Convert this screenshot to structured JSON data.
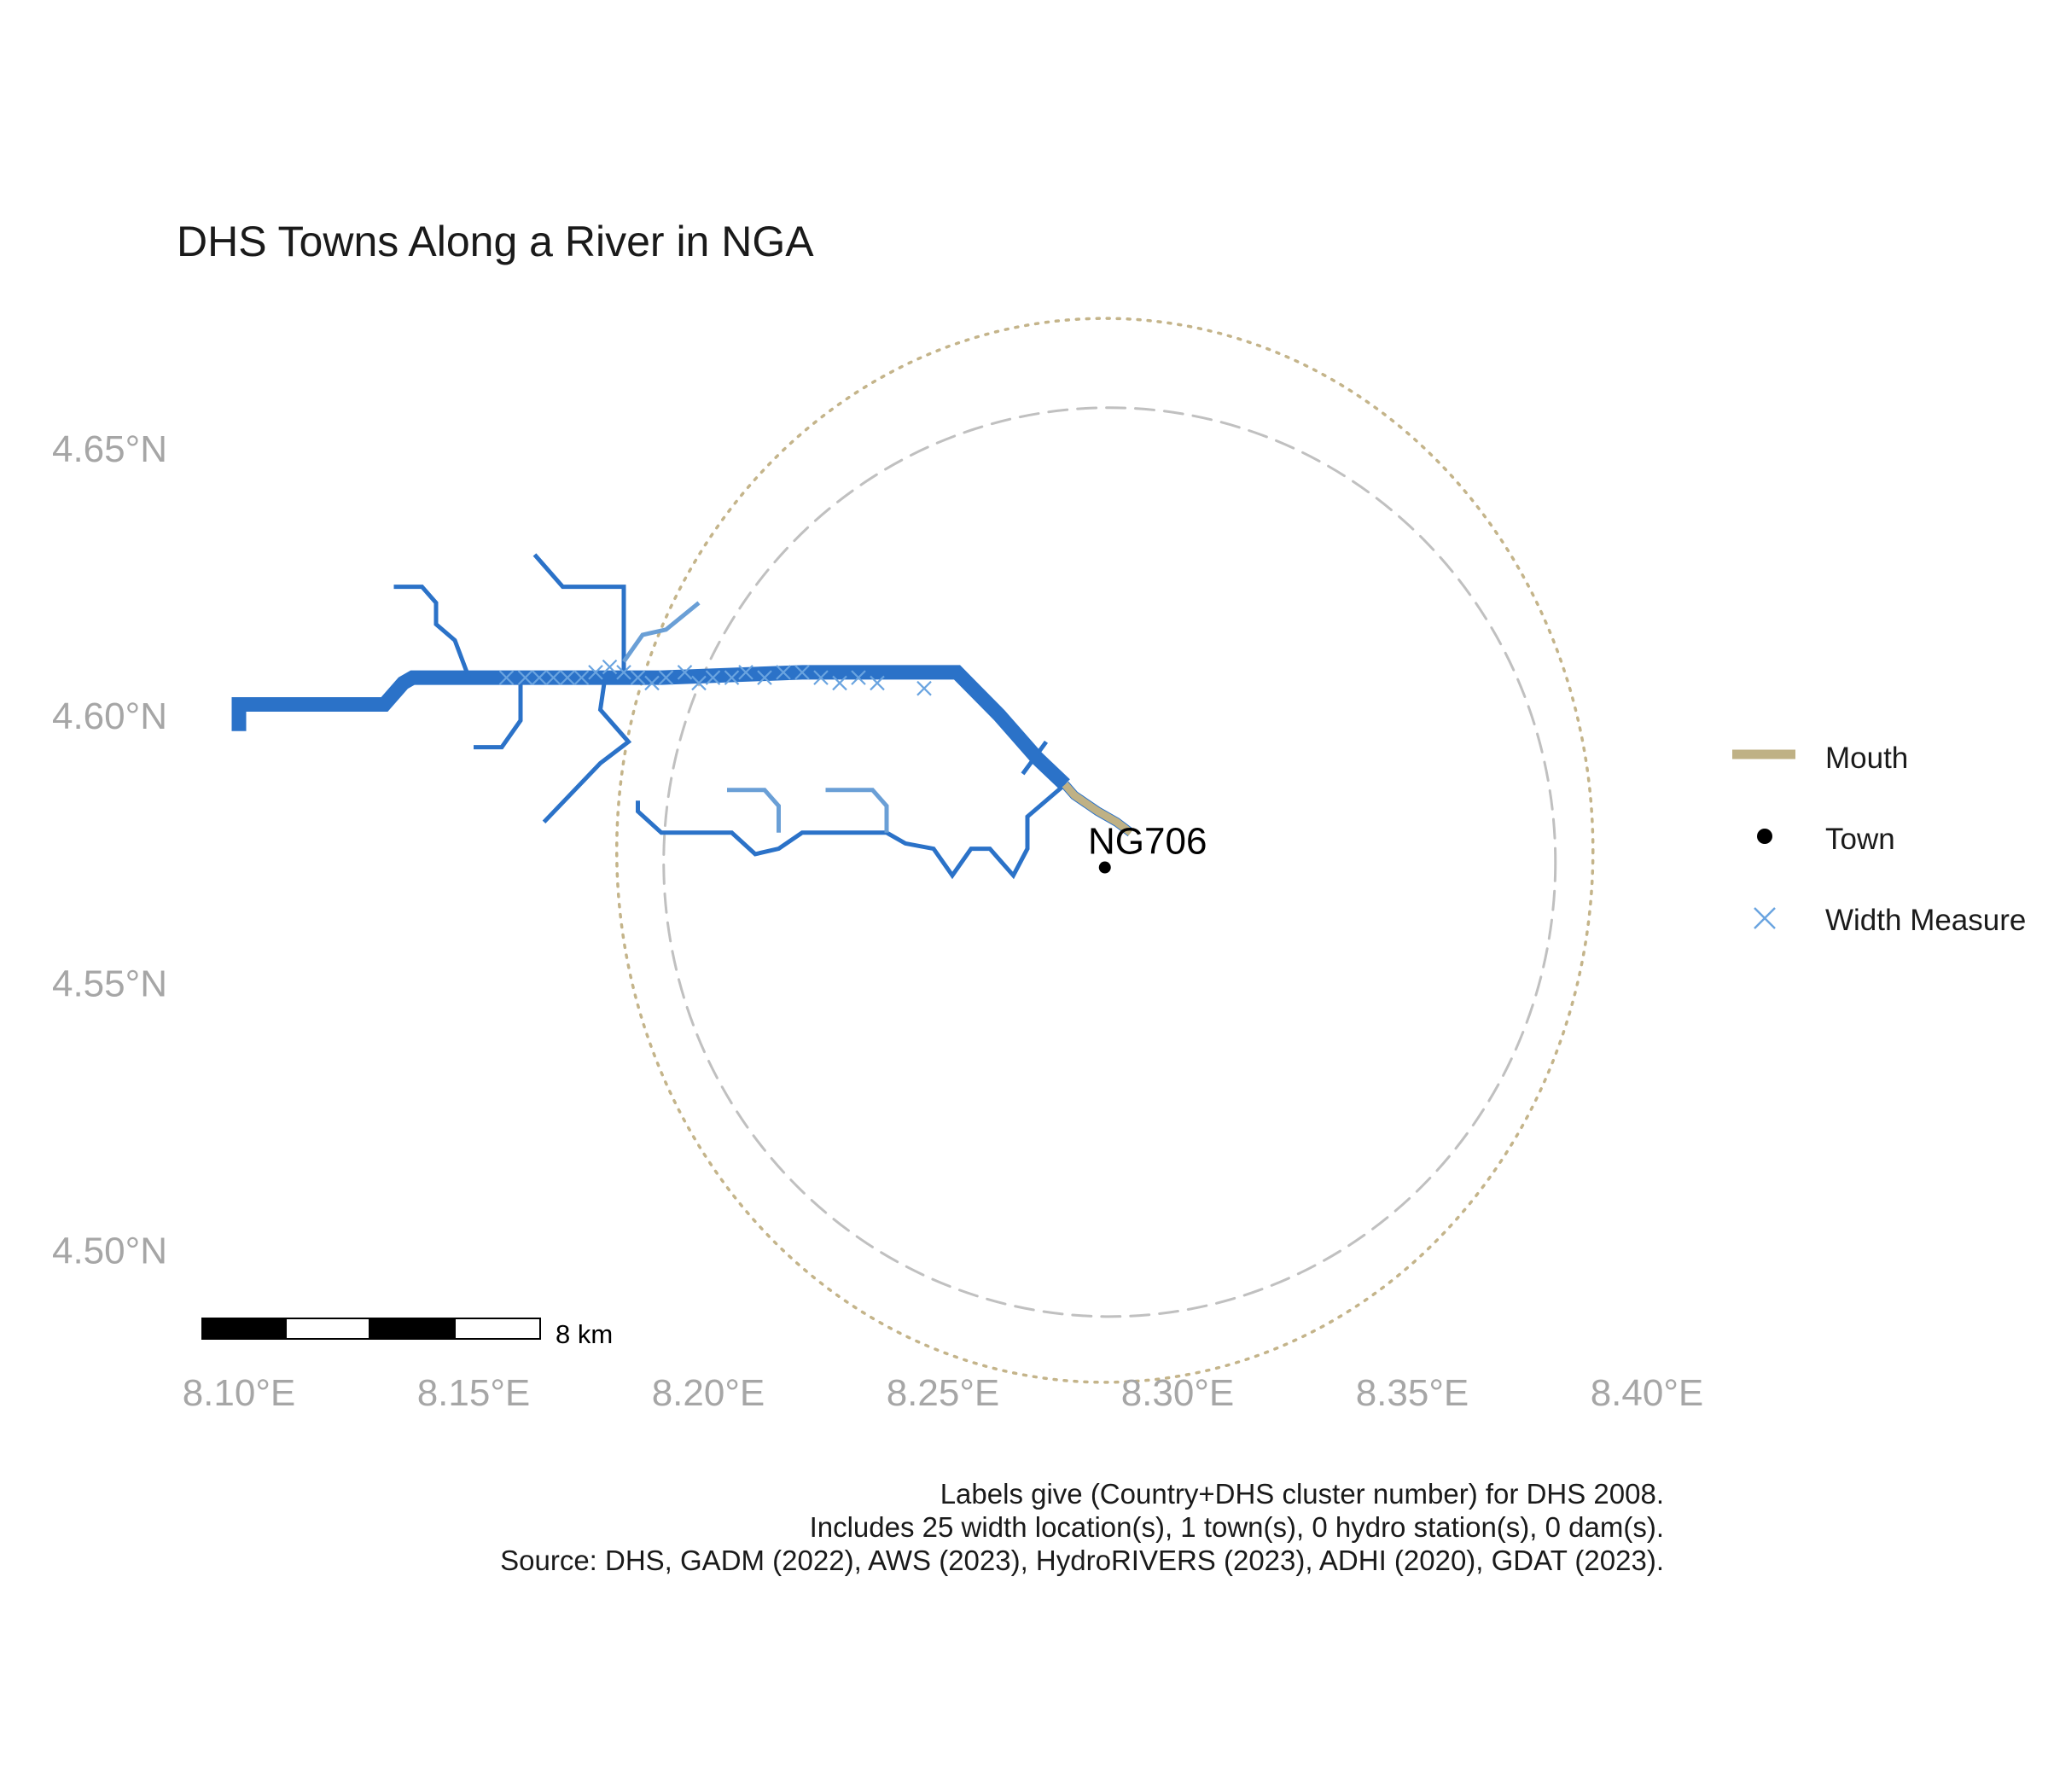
{
  "title": "DHS Towns Along a River in NGA",
  "chart_data": {
    "type": "map",
    "x_axis": {
      "ticks": [
        8.1,
        8.15,
        8.2,
        8.25,
        8.3,
        8.35,
        8.4
      ],
      "tick_labels": [
        "8.10°E",
        "8.15°E",
        "8.20°E",
        "8.25°E",
        "8.30°E",
        "8.35°E",
        "8.40°E"
      ],
      "range": [
        8.097,
        8.409
      ]
    },
    "y_axis": {
      "ticks": [
        4.5,
        4.55,
        4.6,
        4.65
      ],
      "tick_labels": [
        "4.50°N",
        "4.55°N",
        "4.60°N",
        "4.65°N"
      ],
      "range": [
        4.485,
        4.673
      ]
    },
    "grid": false,
    "colors": {
      "river": "#2b72c8",
      "tributary": "#6a9fd6",
      "mouth": "#bfb185",
      "town": "#000000",
      "width_measure": "#6aa4e0",
      "dashed_circle": "#c0c0c0",
      "dotted_circle": "#c4b48a"
    },
    "towns": [
      {
        "label": "NG706",
        "lon": 8.2845,
        "lat": 4.5715
      }
    ],
    "rivers": [
      {
        "role": "main",
        "weight": 2,
        "coords": [
          [
            8.1,
            4.597
          ],
          [
            8.1,
            4.602
          ],
          [
            8.115,
            4.602
          ],
          [
            8.131,
            4.602
          ],
          [
            8.135,
            4.606
          ],
          [
            8.137,
            4.607
          ],
          [
            8.155,
            4.607
          ],
          [
            8.175,
            4.607
          ],
          [
            8.19,
            4.607
          ],
          [
            8.22,
            4.608
          ],
          [
            8.253,
            4.608
          ],
          [
            8.262,
            4.6
          ],
          [
            8.27,
            4.592
          ],
          [
            8.276,
            4.587
          ]
        ]
      },
      {
        "role": "main",
        "weight": 1,
        "coords": [
          [
            8.276,
            4.587
          ],
          [
            8.278,
            4.585
          ],
          [
            8.283,
            4.582
          ],
          [
            8.287,
            4.58
          ],
          [
            8.29,
            4.578
          ]
        ]
      },
      {
        "role": "trib",
        "weight": 0,
        "coords": [
          [
            8.133,
            4.624
          ],
          [
            8.139,
            4.624
          ],
          [
            8.142,
            4.621
          ],
          [
            8.142,
            4.617
          ],
          [
            8.146,
            4.614
          ],
          [
            8.149,
            4.607
          ]
        ]
      },
      {
        "role": "trib",
        "weight": 0,
        "coords": [
          [
            8.16,
            4.607
          ],
          [
            8.16,
            4.599
          ],
          [
            8.156,
            4.594
          ],
          [
            8.15,
            4.594
          ]
        ]
      },
      {
        "role": "trib",
        "weight": 0,
        "coords": [
          [
            8.163,
            4.63
          ],
          [
            8.169,
            4.624
          ],
          [
            8.178,
            4.624
          ],
          [
            8.182,
            4.624
          ],
          [
            8.182,
            4.607
          ]
        ]
      },
      {
        "role": "trib",
        "weight": 0,
        "coords": [
          [
            8.178,
            4.607
          ],
          [
            8.177,
            4.601
          ],
          [
            8.183,
            4.595
          ],
          [
            8.177,
            4.591
          ],
          [
            8.165,
            4.58
          ]
        ]
      },
      {
        "role": "trib",
        "weight": 0,
        "coords": [
          [
            8.267,
            4.589
          ],
          [
            8.272,
            4.595
          ]
        ]
      },
      {
        "role": "trib",
        "weight": 0,
        "coords": [
          [
            8.276,
            4.587
          ],
          [
            8.268,
            4.581
          ],
          [
            8.268,
            4.575
          ],
          [
            8.265,
            4.57
          ],
          [
            8.262,
            4.573
          ],
          [
            8.26,
            4.575
          ],
          [
            8.256,
            4.575
          ],
          [
            8.252,
            4.57
          ],
          [
            8.248,
            4.575
          ],
          [
            8.242,
            4.576
          ],
          [
            8.238,
            4.578
          ],
          [
            8.22,
            4.578
          ],
          [
            8.215,
            4.575
          ],
          [
            8.21,
            4.574
          ],
          [
            8.205,
            4.578
          ],
          [
            8.19,
            4.578
          ],
          [
            8.185,
            4.582
          ],
          [
            8.185,
            4.584
          ]
        ]
      },
      {
        "role": "trib_light",
        "weight": 0,
        "coords": [
          [
            8.182,
            4.61
          ],
          [
            8.186,
            4.615
          ],
          [
            8.191,
            4.616
          ],
          [
            8.198,
            4.621
          ]
        ]
      },
      {
        "role": "trib_light",
        "weight": 0,
        "coords": [
          [
            8.204,
            4.586
          ],
          [
            8.212,
            4.586
          ],
          [
            8.215,
            4.583
          ],
          [
            8.215,
            4.578
          ]
        ]
      },
      {
        "role": "trib_light",
        "weight": 0,
        "coords": [
          [
            8.225,
            4.586
          ],
          [
            8.235,
            4.586
          ],
          [
            8.238,
            4.583
          ],
          [
            8.238,
            4.578
          ]
        ]
      }
    ],
    "width_measures": [
      [
        8.157,
        4.607
      ],
      [
        8.161,
        4.607
      ],
      [
        8.164,
        4.607
      ],
      [
        8.167,
        4.607
      ],
      [
        8.17,
        4.607
      ],
      [
        8.173,
        4.607
      ],
      [
        8.176,
        4.608
      ],
      [
        8.179,
        4.609
      ],
      [
        8.182,
        4.608
      ],
      [
        8.185,
        4.607
      ],
      [
        8.188,
        4.606
      ],
      [
        8.191,
        4.607
      ],
      [
        8.195,
        4.608
      ],
      [
        8.198,
        4.606
      ],
      [
        8.201,
        4.607
      ],
      [
        8.205,
        4.607
      ],
      [
        8.208,
        4.608
      ],
      [
        8.212,
        4.607
      ],
      [
        8.216,
        4.608
      ],
      [
        8.22,
        4.608
      ],
      [
        8.224,
        4.607
      ],
      [
        8.228,
        4.606
      ],
      [
        8.232,
        4.607
      ],
      [
        8.236,
        4.606
      ],
      [
        8.246,
        4.605
      ]
    ],
    "buffers": [
      {
        "style": "dashed",
        "center": [
          8.2855,
          4.5725
        ],
        "radius_lon": 0.095,
        "radius_lat": 0.085
      },
      {
        "style": "dotted",
        "center": [
          8.2845,
          4.5747
        ],
        "radius_lon": 0.104,
        "radius_lat": 0.0995
      }
    ],
    "legend": {
      "placement": "right",
      "items": [
        {
          "key": "mouth",
          "label": "Mouth"
        },
        {
          "key": "town",
          "label": "Town"
        },
        {
          "key": "width",
          "label": "Width Measure"
        }
      ]
    },
    "scale_bar": {
      "label": "8 km"
    }
  },
  "caption": [
    "Labels give (Country+DHS cluster number) for DHS 2008.",
    "Includes 25 width location(s), 1 town(s), 0 hydro station(s), 0 dam(s).",
    "Source: DHS, GADM (2022), AWS (2023), HydroRIVERS (2023), ADHI (2020), GDAT (2023)."
  ]
}
